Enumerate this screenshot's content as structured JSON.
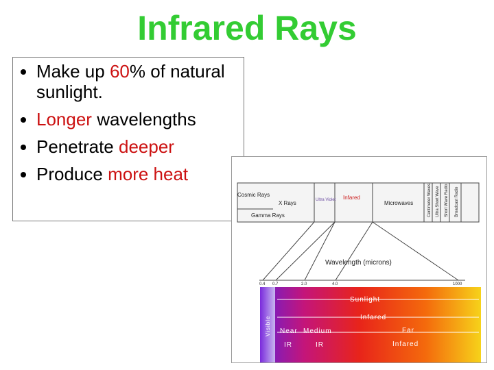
{
  "header": {
    "title": "Infrared Rays"
  },
  "bullets": [
    {
      "segments": [
        {
          "text": "Make up "
        },
        {
          "text": "60",
          "color": "#cc1111"
        },
        {
          "text": "% of natural sunlight."
        }
      ]
    },
    {
      "segments": [
        {
          "text": "Longer",
          "color": "#cc1111"
        },
        {
          "text": " wavelengths"
        }
      ]
    },
    {
      "segments": [
        {
          "text": "Penetrate "
        },
        {
          "text": "deeper",
          "color": "#cc1111"
        }
      ]
    },
    {
      "segments": [
        {
          "text": "Produce "
        },
        {
          "text": "more heat",
          "color": "#cc1111"
        }
      ]
    }
  ],
  "figure": {
    "spectrum": {
      "cosmic": "Cosmic Rays",
      "xrays": "X Rays",
      "gamma": "Gamma Rays",
      "uv": "Ultra Violet",
      "infrared": "Infared",
      "microwaves": "Microwaves",
      "radio": [
        "Centimeter Waves",
        "Ultra Short Wave",
        "Short Wave Radio",
        "Broadcast Radio"
      ]
    },
    "axis_label": "Wavelength (microns)",
    "scale": [
      "0.4",
      "0.7",
      "2.0",
      "4.0",
      "1000"
    ],
    "visible": "Visible",
    "sunlight": "Sunlight",
    "infrared": "Infared",
    "near": [
      "Near",
      "IR"
    ],
    "medium": [
      "Medium",
      "IR"
    ],
    "far": [
      "Far",
      "Infared"
    ]
  }
}
